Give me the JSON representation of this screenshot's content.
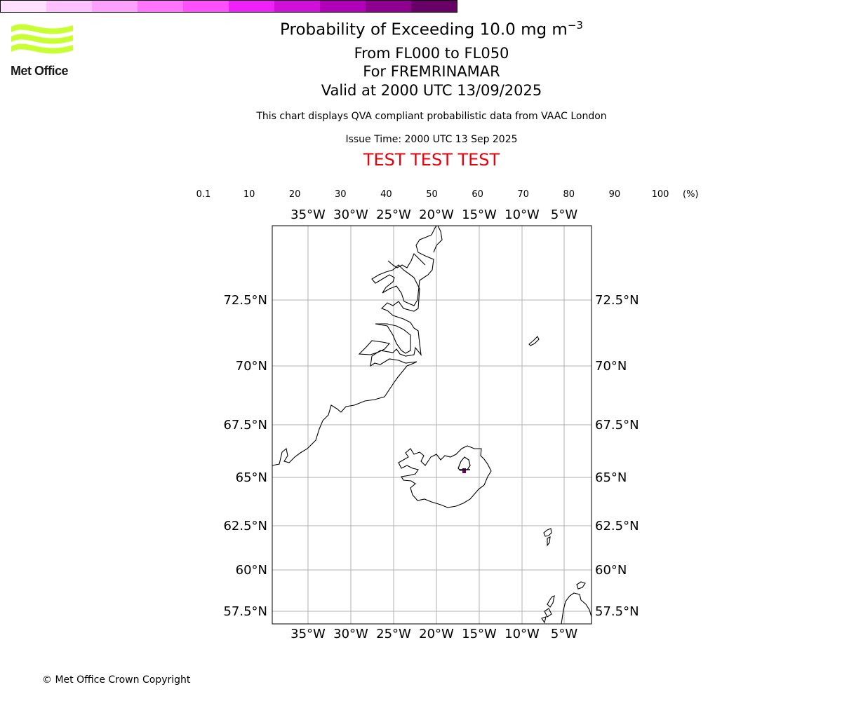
{
  "header": {
    "title_main": "Probability of Exceeding 10.0 mg m",
    "title_exp": "−3",
    "levels": "From FL000 to FL050",
    "volcano": "For FREMRINAMAR",
    "valid": "Valid at 2000 UTC 13/09/2025",
    "description": "This chart displays QVA compliant probabilistic data from VAAC London",
    "issue_time": "Issue Time: 2000 UTC 13 Sep 2025",
    "test_banner": "TEST TEST TEST"
  },
  "logo": {
    "text": "Met Office",
    "color": "#c8ff33"
  },
  "colorbar": {
    "ticks": [
      "0.1",
      "10",
      "20",
      "30",
      "40",
      "50",
      "60",
      "70",
      "80",
      "90",
      "100"
    ],
    "colors": [
      "#ffe0ff",
      "#ffc0ff",
      "#ffa0ff",
      "#ff74ff",
      "#ff50ff",
      "#f020f8",
      "#d010d8",
      "#b000b8",
      "#900090",
      "#680068"
    ],
    "unit": "(%)"
  },
  "map": {
    "lon_labels": [
      "35°W",
      "30°W",
      "25°W",
      "20°W",
      "15°W",
      "10°W",
      "5°W"
    ],
    "lat_labels": [
      "72.5°N",
      "70°N",
      "67.5°N",
      "65°N",
      "62.5°N",
      "60°N",
      "57.5°N"
    ],
    "grid_color": "#b0b0b0",
    "ash_color": "#680068"
  },
  "footer": {
    "copyright": "© Met Office Crown Copyright"
  }
}
